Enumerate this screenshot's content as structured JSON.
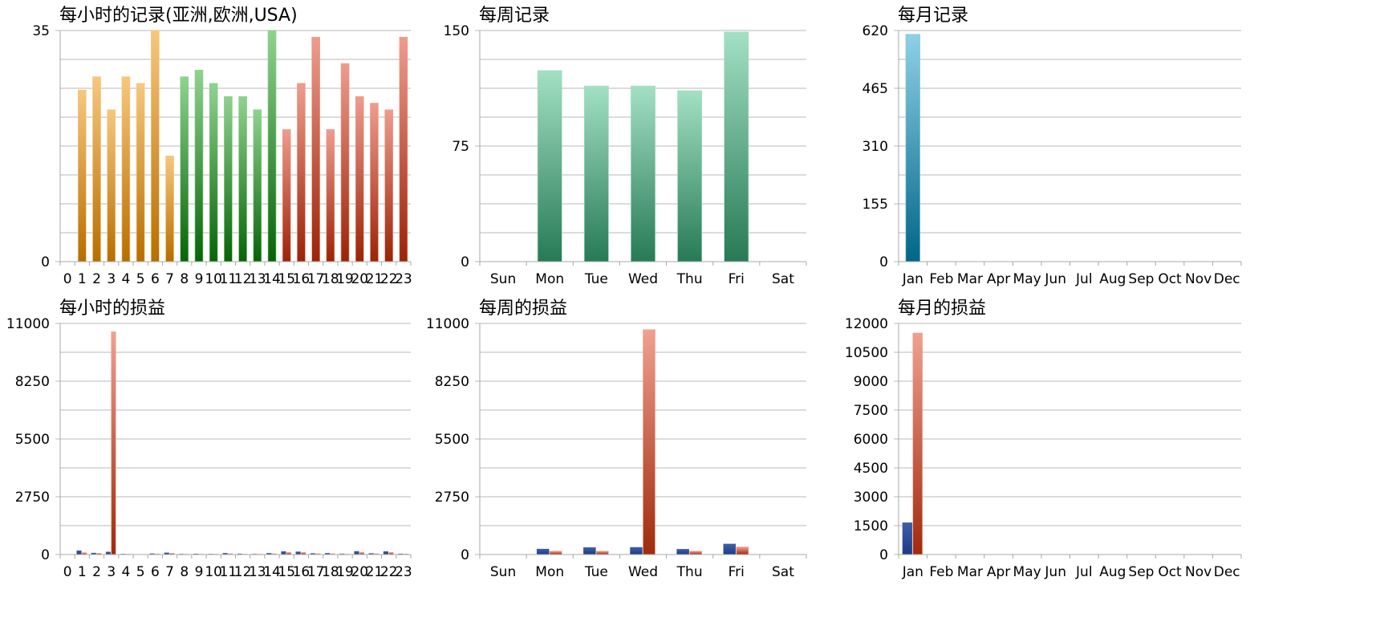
{
  "colors": {
    "grid": "#b9b9b9",
    "text": "#000000",
    "orange_top": "#f6c77e",
    "orange_bottom": "#b86e00",
    "green_top": "#8fd28f",
    "green_bottom": "#066406",
    "red_top": "#ee9c8e",
    "red_bottom": "#9c2306",
    "teal_top": "#a3e0c4",
    "teal_bottom": "#277a55",
    "blue_top": "#8fd0e6",
    "blue_bottom": "#006687",
    "navy_top": "#3f5ea8",
    "navy_bottom": "#1c3a86",
    "loss_top": "#f0a090",
    "loss_bottom": "#a02a0c"
  },
  "chart_data": [
    {
      "id": "hourly-records",
      "type": "bar",
      "title": "每小时的记录(亚洲,欧洲,USA)",
      "categories": [
        "0",
        "1",
        "2",
        "3",
        "4",
        "5",
        "6",
        "7",
        "8",
        "9",
        "10",
        "11",
        "12",
        "13",
        "14",
        "15",
        "16",
        "17",
        "18",
        "19",
        "20",
        "21",
        "22",
        "23"
      ],
      "series": [
        {
          "values": [
            0,
            26,
            28,
            23,
            28,
            27,
            35,
            16,
            28,
            29,
            27,
            25,
            25,
            23,
            35,
            20,
            27,
            34,
            20,
            30,
            25,
            24,
            23,
            34
          ],
          "colors": [
            "orange",
            "orange",
            "orange",
            "orange",
            "orange",
            "orange",
            "orange",
            "orange",
            "green",
            "green",
            "green",
            "green",
            "green",
            "green",
            "green",
            "red",
            "red",
            "red",
            "red",
            "red",
            "red",
            "red",
            "red",
            "red"
          ]
        }
      ],
      "ylim": [
        0,
        35
      ],
      "yticks": [
        0,
        35
      ],
      "ygrid": [
        4.375,
        8.75,
        13.125,
        17.5,
        21.875,
        26.25,
        30.625
      ],
      "grid": true
    },
    {
      "id": "weekly-records",
      "type": "bar",
      "title": "每周记录",
      "categories": [
        "Sun",
        "Mon",
        "Tue",
        "Wed",
        "Thu",
        "Fri",
        "Sat"
      ],
      "series": [
        {
          "values": [
            0,
            124,
            114,
            114,
            111,
            149,
            0
          ],
          "colors": [
            "teal",
            "teal",
            "teal",
            "teal",
            "teal",
            "teal",
            "teal"
          ]
        }
      ],
      "ylim": [
        0,
        150
      ],
      "yticks": [
        0,
        75,
        150
      ],
      "ygrid": [
        18.75,
        37.5,
        56.25,
        93.75,
        112.5,
        131.25
      ],
      "grid": true
    },
    {
      "id": "monthly-records",
      "type": "bar",
      "title": "每月记录",
      "categories": [
        "Jan",
        "Feb",
        "Mar",
        "Apr",
        "May",
        "Jun",
        "Jul",
        "Aug",
        "Sep",
        "Oct",
        "Nov",
        "Dec"
      ],
      "series": [
        {
          "values": [
            610,
            0,
            0,
            0,
            0,
            0,
            0,
            0,
            0,
            0,
            0,
            0
          ],
          "colors": [
            "blue",
            "blue",
            "blue",
            "blue",
            "blue",
            "blue",
            "blue",
            "blue",
            "blue",
            "blue",
            "blue",
            "blue"
          ]
        }
      ],
      "ylim": [
        0,
        620
      ],
      "yticks": [
        0,
        155,
        310,
        465,
        620
      ],
      "ygrid": [
        77.5,
        232.5,
        387.5,
        542.5
      ],
      "grid": true
    },
    {
      "id": "hourly-pnl",
      "type": "bar",
      "title": "每小时的损益",
      "categories": [
        "0",
        "1",
        "2",
        "3",
        "4",
        "5",
        "6",
        "7",
        "8",
        "9",
        "10",
        "11",
        "12",
        "13",
        "14",
        "15",
        "16",
        "17",
        "18",
        "19",
        "20",
        "21",
        "22",
        "23"
      ],
      "series": [
        {
          "values": [
            0,
            180,
            70,
            120,
            20,
            0,
            40,
            80,
            20,
            30,
            20,
            60,
            30,
            20,
            60,
            140,
            130,
            50,
            60,
            30,
            150,
            50,
            140,
            30
          ],
          "color": "navy"
        },
        {
          "values": [
            0,
            90,
            60,
            10600,
            20,
            0,
            30,
            60,
            20,
            20,
            20,
            40,
            20,
            20,
            40,
            100,
            100,
            40,
            40,
            20,
            100,
            40,
            100,
            30
          ],
          "color": "loss"
        }
      ],
      "ylim": [
        0,
        11000
      ],
      "yticks": [
        0,
        2750,
        5500,
        8250,
        11000
      ],
      "ygrid": [
        1375,
        4125,
        6875,
        9625
      ],
      "grid": true
    },
    {
      "id": "weekly-pnl",
      "type": "bar",
      "title": "每周的损益",
      "categories": [
        "Sun",
        "Mon",
        "Tue",
        "Wed",
        "Thu",
        "Fri",
        "Sat"
      ],
      "series": [
        {
          "values": [
            0,
            260,
            330,
            340,
            250,
            500,
            0
          ],
          "color": "navy"
        },
        {
          "values": [
            0,
            160,
            160,
            10700,
            160,
            360,
            0
          ],
          "color": "loss"
        }
      ],
      "ylim": [
        0,
        11000
      ],
      "yticks": [
        0,
        2750,
        5500,
        8250,
        11000
      ],
      "ygrid": [
        1375,
        4125,
        6875,
        9625
      ],
      "grid": true
    },
    {
      "id": "monthly-pnl",
      "type": "bar",
      "title": "每月的损益",
      "categories": [
        "Jan",
        "Feb",
        "Mar",
        "Apr",
        "May",
        "Jun",
        "Jul",
        "Aug",
        "Sep",
        "Oct",
        "Nov",
        "Dec"
      ],
      "series": [
        {
          "values": [
            1650,
            0,
            0,
            0,
            0,
            0,
            0,
            0,
            0,
            0,
            0,
            0
          ],
          "color": "navy"
        },
        {
          "values": [
            11500,
            0,
            0,
            0,
            0,
            0,
            0,
            0,
            0,
            0,
            0,
            0
          ],
          "color": "loss"
        }
      ],
      "ylim": [
        0,
        12000
      ],
      "yticks": [
        0,
        1500,
        3000,
        4500,
        6000,
        7500,
        9000,
        10500,
        12000
      ],
      "ygrid": [],
      "grid": true
    }
  ]
}
